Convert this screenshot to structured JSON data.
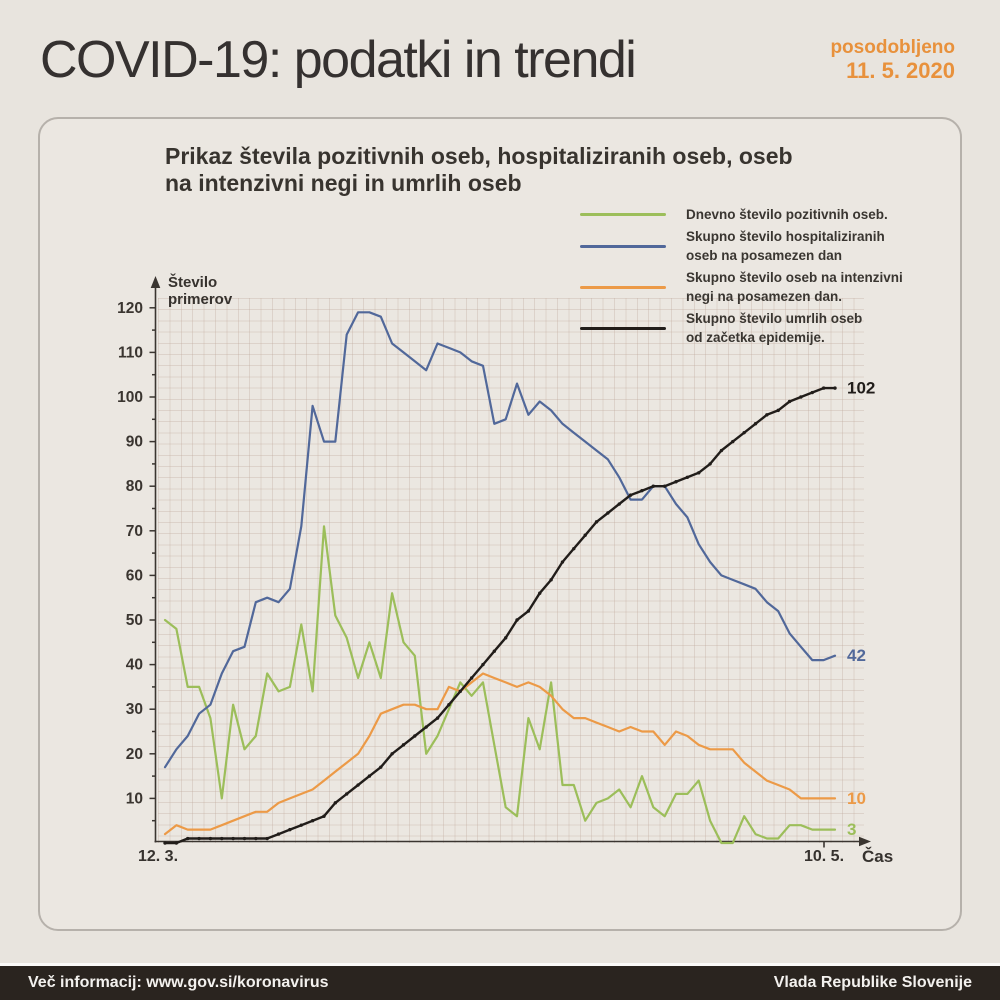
{
  "header": {
    "title": "COVID-19: podatki in trendi",
    "updated_label": "posodobljeno",
    "updated_date": "11. 5. 2020",
    "accent_color": "#e8913c"
  },
  "card": {
    "title_line1": "Prikaz števila pozitivnih oseb, hospitaliziranih oseb, oseb",
    "title_line2": "na intenzivni negi in umrlih oseb"
  },
  "footer": {
    "left": "Več informacij: www.gov.si/koronavirus",
    "right": "Vlada Republike Slovenije",
    "background": "#2a241f"
  },
  "chart_data": {
    "type": "line",
    "title": "Prikaz števila pozitivnih oseb, hospitaliziranih oseb, oseb na intenzivni negi in umrlih oseb",
    "ylabel": "Število primerov",
    "xlabel": "Čas",
    "x_start_label": "12. 3.",
    "x_end_label": "10. 5.",
    "n_points": 60,
    "y_ticks": [
      10,
      20,
      30,
      40,
      50,
      60,
      70,
      80,
      90,
      100,
      110,
      120
    ],
    "ylim": [
      0,
      124
    ],
    "grid": "dotted",
    "legend_position": "top-right",
    "series": [
      {
        "id": "daily-positive",
        "name": "Dnevno število pozitivnih oseb.",
        "legend_lines": [
          "Dnevno število pozitivnih oseb."
        ],
        "color": "#9cbe5a",
        "end_label": "3",
        "markers": false,
        "values": [
          50,
          48,
          35,
          35,
          28,
          10,
          31,
          21,
          24,
          38,
          34,
          35,
          49,
          34,
          71,
          51,
          46,
          37,
          45,
          37,
          56,
          45,
          42,
          20,
          24,
          30,
          36,
          33,
          36,
          22,
          8,
          6,
          28,
          21,
          36,
          13,
          13,
          5,
          9,
          10,
          12,
          8,
          15,
          8,
          6,
          11,
          11,
          14,
          5,
          0,
          0,
          6,
          2,
          1,
          1,
          4,
          4,
          3,
          3,
          3
        ]
      },
      {
        "id": "hospitalized",
        "name": "Skupno število hospitaliziranih oseb na posamezen dan",
        "legend_lines": [
          "Skupno število hospitaliziranih",
          "oseb na posamezen dan"
        ],
        "color": "#51689a",
        "end_label": "42",
        "markers": false,
        "values": [
          17,
          21,
          24,
          29,
          31,
          38,
          43,
          44,
          54,
          55,
          54,
          57,
          71,
          98,
          90,
          90,
          114,
          119,
          119,
          118,
          112,
          110,
          108,
          106,
          112,
          111,
          110,
          108,
          107,
          94,
          95,
          103,
          96,
          99,
          97,
          94,
          92,
          90,
          88,
          86,
          82,
          77,
          77,
          80,
          80,
          76,
          73,
          67,
          63,
          60,
          59,
          58,
          57,
          54,
          52,
          47,
          44,
          41,
          41,
          42
        ]
      },
      {
        "id": "icu",
        "name": "Skupno število oseb na intenzivni negi na posamezen dan.",
        "legend_lines": [
          "Skupno število oseb na intenzivni",
          "negi na posamezen dan."
        ],
        "color": "#ec9a47",
        "end_label": "10",
        "markers": false,
        "values": [
          2,
          4,
          3,
          3,
          3,
          4,
          5,
          6,
          7,
          7,
          9,
          10,
          11,
          12,
          14,
          16,
          18,
          20,
          24,
          29,
          30,
          31,
          31,
          30,
          30,
          35,
          34,
          36,
          38,
          37,
          36,
          35,
          36,
          35,
          33,
          30,
          28,
          28,
          27,
          26,
          25,
          26,
          25,
          25,
          22,
          25,
          24,
          22,
          21,
          21,
          21,
          18,
          16,
          14,
          13,
          12,
          10,
          10,
          10,
          10
        ]
      },
      {
        "id": "deaths",
        "name": "Skupno število umrlih oseb od začetka epidemije.",
        "legend_lines": [
          "Skupno število umrlih oseb",
          "od začetka epidemije."
        ],
        "color": "#211d1a",
        "end_label": "102",
        "markers": true,
        "values": [
          0,
          0,
          1,
          1,
          1,
          1,
          1,
          1,
          1,
          1,
          2,
          3,
          4,
          5,
          6,
          9,
          11,
          13,
          15,
          17,
          20,
          22,
          24,
          26,
          28,
          31,
          34,
          37,
          40,
          43,
          46,
          50,
          52,
          56,
          59,
          63,
          66,
          69,
          72,
          74,
          76,
          78,
          79,
          80,
          80,
          81,
          82,
          83,
          85,
          88,
          90,
          92,
          94,
          96,
          97,
          99,
          100,
          101,
          102,
          102
        ]
      }
    ]
  }
}
